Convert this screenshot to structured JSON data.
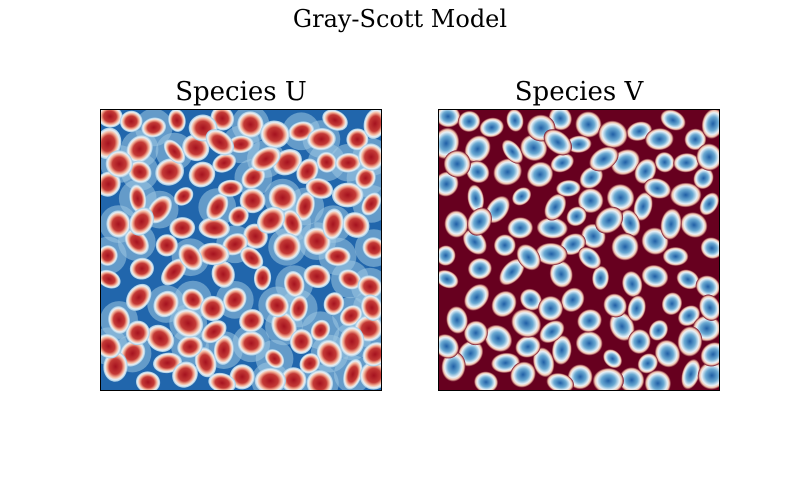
{
  "figure": {
    "suptitle": "Gray-Scott Model"
  },
  "chart_data": [
    {
      "type": "heatmap",
      "title": "Species U",
      "colormap": "RdBu_r",
      "colors": {
        "background": "#2166ac",
        "mid": "#d1e5f0",
        "spot": "#b2182b"
      },
      "axes_visible": false,
      "description_values": "spotted pattern of U concentration"
    },
    {
      "type": "heatmap",
      "title": "Species V",
      "colormap": "RdBu_r",
      "colors": {
        "background": "#67001f",
        "mid": "#f7f7f7",
        "spot": "#2166ac"
      },
      "axes_visible": false,
      "description_values": "spotted pattern of V concentration"
    }
  ]
}
